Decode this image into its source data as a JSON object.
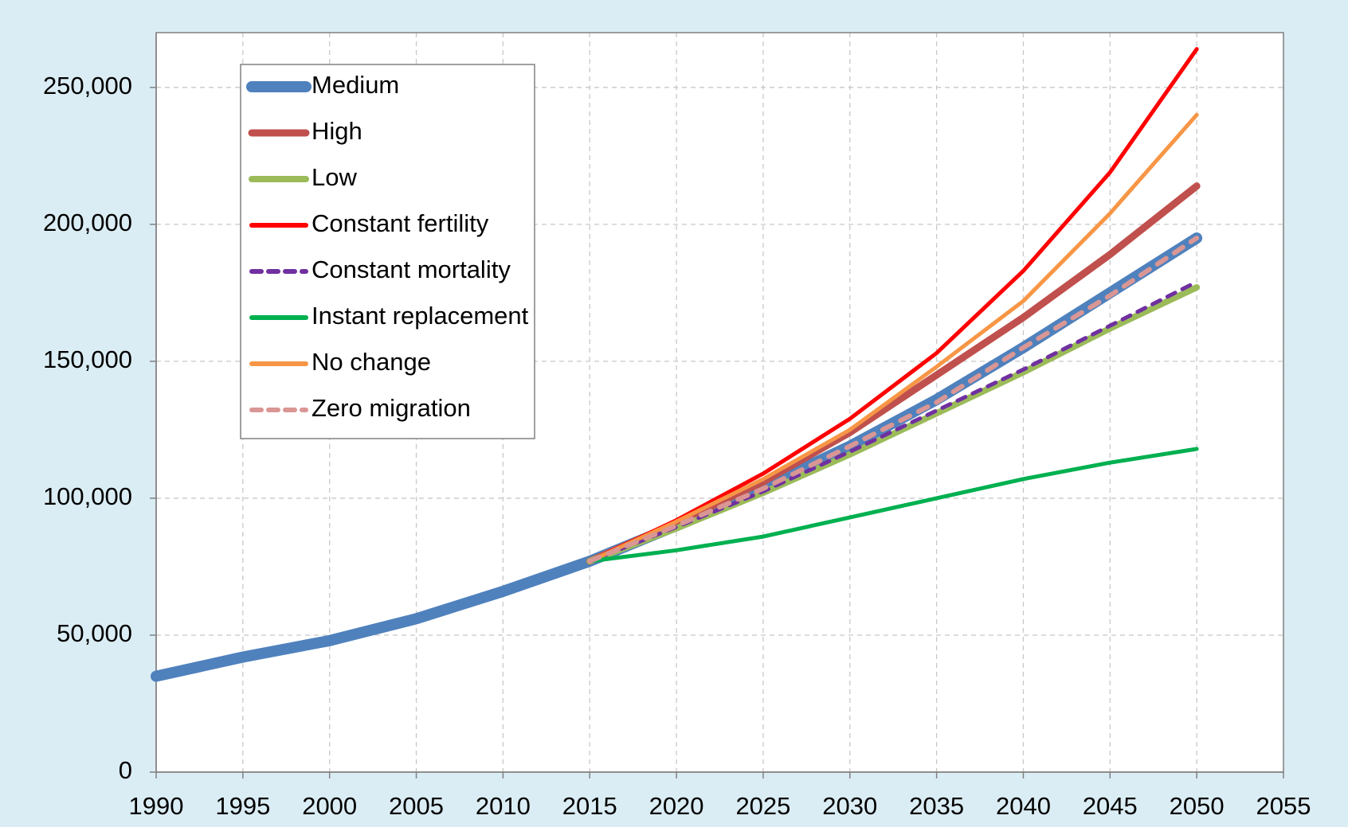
{
  "chart_data": {
    "type": "line",
    "x": [
      1990,
      1995,
      2000,
      2005,
      2010,
      2015,
      2020,
      2025,
      2030,
      2035,
      2040,
      2045,
      2050
    ],
    "series": [
      {
        "name": "Medium",
        "color": "#4f81bd",
        "width": 14,
        "dash": false,
        "values": [
          35000,
          42000,
          48000,
          56000,
          66000,
          77000,
          90000,
          104000,
          119000,
          136000,
          155000,
          175000,
          195000
        ]
      },
      {
        "name": "High",
        "color": "#c0504d",
        "width": 9,
        "dash": false,
        "values": [
          null,
          null,
          null,
          null,
          null,
          77000,
          91000,
          106000,
          124000,
          145000,
          166000,
          189000,
          214000
        ]
      },
      {
        "name": "Low",
        "color": "#9bbb59",
        "width": 8,
        "dash": false,
        "values": [
          null,
          null,
          null,
          null,
          null,
          77000,
          89000,
          102000,
          116000,
          131000,
          146000,
          162000,
          177000
        ]
      },
      {
        "name": "Constant fertility",
        "color": "#ff0000",
        "width": 5,
        "dash": false,
        "values": [
          null,
          null,
          null,
          null,
          null,
          77000,
          92000,
          109000,
          129000,
          153000,
          183000,
          219000,
          264000
        ]
      },
      {
        "name": "Constant mortality",
        "color": "#7030a0",
        "width": 5,
        "dash": true,
        "values": [
          null,
          null,
          null,
          null,
          null,
          77000,
          89500,
          102500,
          117000,
          132000,
          147000,
          163000,
          179000
        ]
      },
      {
        "name": "Instant replacement",
        "color": "#00b050",
        "width": 5,
        "dash": false,
        "values": [
          null,
          null,
          null,
          null,
          null,
          77000,
          81000,
          86000,
          93000,
          100000,
          107000,
          113000,
          118000
        ]
      },
      {
        "name": "No change",
        "color": "#f79646",
        "width": 5,
        "dash": false,
        "values": [
          null,
          null,
          null,
          null,
          null,
          77000,
          91500,
          107000,
          125000,
          148000,
          172000,
          204000,
          240000
        ]
      },
      {
        "name": "Zero migration",
        "color": "#d99694",
        "width": 6,
        "dash": true,
        "values": [
          null,
          null,
          null,
          null,
          null,
          77000,
          90000,
          103500,
          119000,
          135000,
          155000,
          174000,
          195000
        ]
      }
    ],
    "xlim": [
      1990,
      2055
    ],
    "xticks": [
      1990,
      1995,
      2000,
      2005,
      2010,
      2015,
      2020,
      2025,
      2030,
      2035,
      2040,
      2045,
      2050,
      2055
    ],
    "ylim": [
      0,
      270000
    ],
    "yticks": [
      0,
      {
        "value": 50000,
        "label": "50,000"
      },
      {
        "value": 100000,
        "label": "100,000"
      },
      {
        "value": 150000,
        "label": "150,000"
      },
      {
        "value": 200000,
        "label": "200,000"
      },
      {
        "value": 250000,
        "label": "250,000"
      }
    ],
    "grid": true,
    "legend": "upper left"
  }
}
